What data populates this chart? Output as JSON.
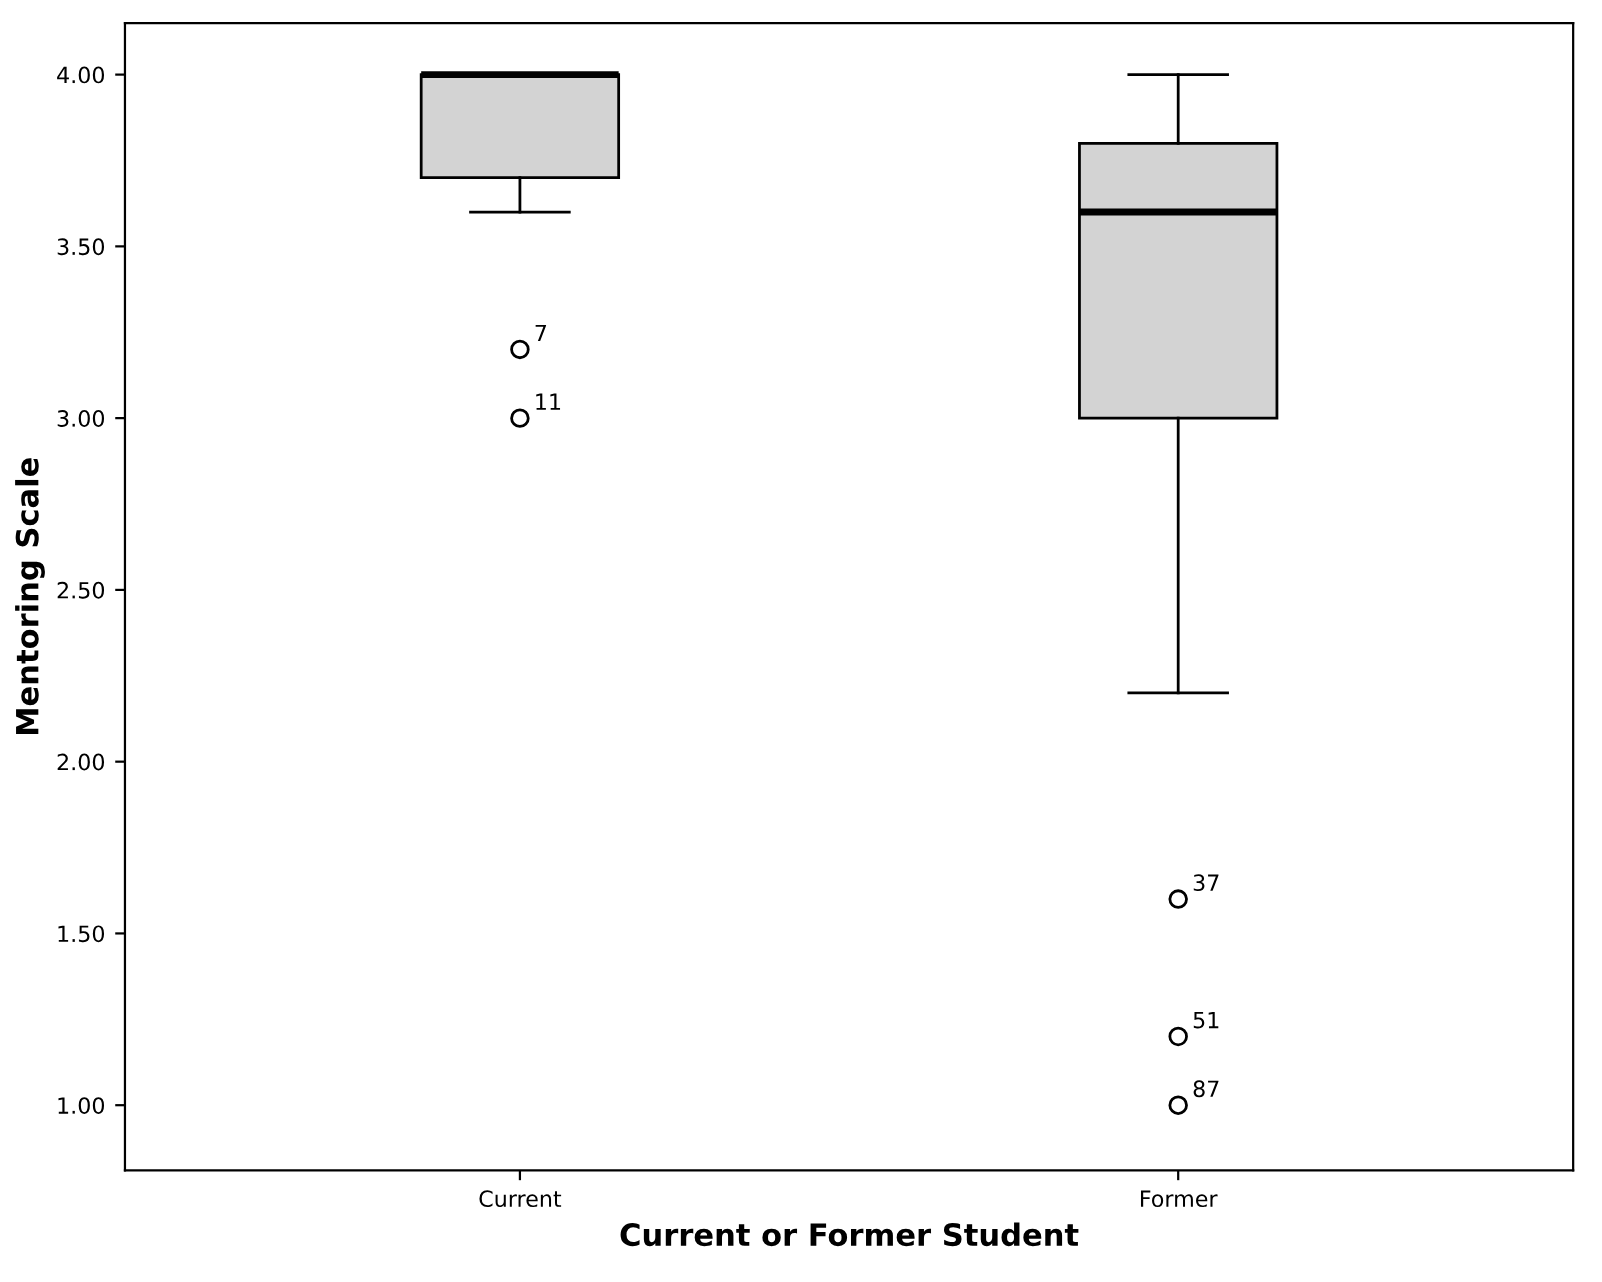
{
  "chart_data": {
    "type": "box",
    "xlabel": "Current or Former Student",
    "ylabel": "Mentoring Scale",
    "categories": [
      "Current",
      "Former"
    ],
    "boxes": [
      {
        "low": 3.6,
        "q1": 3.7,
        "median": 4.0,
        "q3": 4.0,
        "high": 4.0,
        "outliers": [
          3.2,
          3.0
        ]
      },
      {
        "low": 2.2,
        "q1": 3.0,
        "median": 3.6,
        "q3": 3.8,
        "high": 4.0,
        "outliers": [
          1.6,
          1.2,
          1.0
        ]
      }
    ],
    "color": "#d3d3d3",
    "ylim": [
      0.81,
      4.15
    ],
    "yticks": [
      {
        "value": 1,
        "label": "1.00"
      },
      {
        "value": 1.5,
        "label": "1.50"
      },
      {
        "value": 2,
        "label": "2.00"
      },
      {
        "value": 2.5,
        "label": "2.50"
      },
      {
        "value": 3,
        "label": "3.00"
      },
      {
        "value": 3.5,
        "label": "3.50"
      },
      {
        "value": 4,
        "label": "4.00"
      }
    ],
    "annotations": [
      "7",
      "11",
      "37",
      "51",
      "87"
    ],
    "grid": false,
    "legend": false
  }
}
